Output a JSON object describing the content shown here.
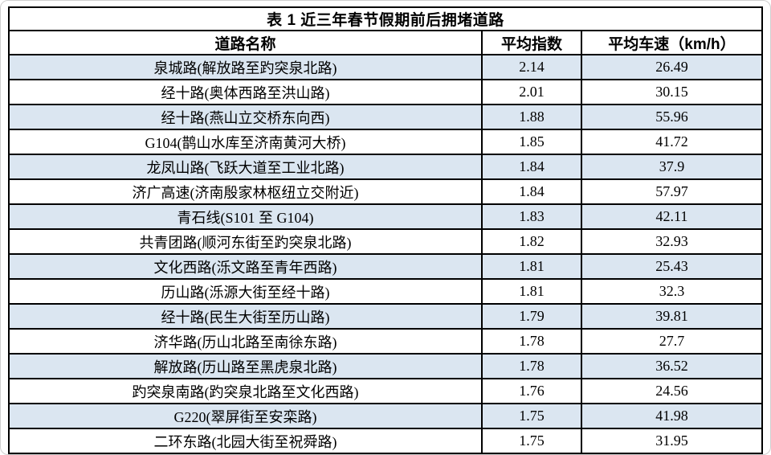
{
  "page": {
    "background": "#ffffff",
    "frame_border": "#cfcfcf"
  },
  "table": {
    "title": "表 1  近三年春节假期前后拥堵道路",
    "stripe_color": "#dbe6f1",
    "border_color": "#000000",
    "columns": [
      {
        "label": "道路名称"
      },
      {
        "label": "平均指数"
      },
      {
        "label": "平均车速（km/h）"
      }
    ],
    "rows": [
      {
        "name": "泉城路(解放路至趵突泉北路)",
        "index": "2.14",
        "speed": "26.49"
      },
      {
        "name": "经十路(奥体西路至洪山路)",
        "index": "2.01",
        "speed": "30.15"
      },
      {
        "name": "经十路(燕山立交桥东向西)",
        "index": "1.88",
        "speed": "55.96"
      },
      {
        "name": "G104(鹊山水库至济南黄河大桥)",
        "index": "1.85",
        "speed": "41.72"
      },
      {
        "name": "龙凤山路(飞跃大道至工业北路)",
        "index": "1.84",
        "speed": "37.9"
      },
      {
        "name": "济广高速(济南殷家林枢纽立交附近)",
        "index": "1.84",
        "speed": "57.97"
      },
      {
        "name": "青石线(S101 至 G104)",
        "index": "1.83",
        "speed": "42.11"
      },
      {
        "name": "共青团路(顺河东街至趵突泉北路)",
        "index": "1.82",
        "speed": "32.93"
      },
      {
        "name": "文化西路(泺文路至青年西路)",
        "index": "1.81",
        "speed": "25.43"
      },
      {
        "name": "历山路(泺源大街至经十路)",
        "index": "1.81",
        "speed": "32.3"
      },
      {
        "name": "经十路(民生大街至历山路)",
        "index": "1.79",
        "speed": "39.81"
      },
      {
        "name": "济华路(历山北路至南徐东路)",
        "index": "1.78",
        "speed": "27.7"
      },
      {
        "name": "解放路(历山路至黑虎泉北路)",
        "index": "1.78",
        "speed": "36.52"
      },
      {
        "name": "趵突泉南路(趵突泉北路至文化西路)",
        "index": "1.76",
        "speed": "24.56"
      },
      {
        "name": "G220(翠屏街至安栾路)",
        "index": "1.75",
        "speed": "41.98"
      },
      {
        "name": "二环东路(北园大街至祝舜路)",
        "index": "1.75",
        "speed": "31.95"
      }
    ]
  }
}
